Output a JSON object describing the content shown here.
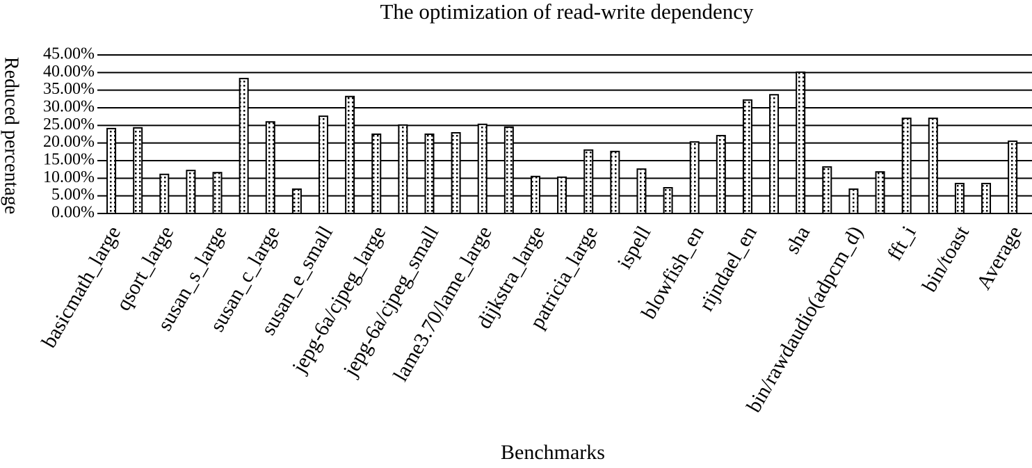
{
  "chart_data": {
    "type": "bar",
    "title": "The optimization of read-write dependency",
    "x_label": "Benchmarks",
    "y_label": "Reduced percentage",
    "categories": [
      "basicmath_large",
      null,
      "qsort_large",
      null,
      "susan_s_large",
      null,
      "susan_c_large",
      null,
      "susan_e_small",
      null,
      "jepg-6a/cjpeg_large",
      null,
      "jepg-6a/cjpeg_small",
      null,
      "lame3.70/lame_large",
      null,
      "dijkstra_large",
      null,
      "patricia_large",
      null,
      "ispell",
      null,
      "blowfish_en",
      null,
      "rijndael_en",
      null,
      "sha",
      null,
      "bin/rawdaudio(adpcm_d)",
      null,
      "fft_i",
      null,
      "bin/toast",
      null,
      "Average"
    ],
    "values": [
      24.1,
      24.3,
      11.1,
      12.2,
      11.6,
      38.3,
      26.0,
      6.9,
      27.6,
      33.2,
      22.5,
      25.1,
      22.5,
      22.9,
      25.3,
      24.5,
      10.5,
      10.3,
      18.0,
      17.6,
      12.6,
      7.3,
      20.3,
      22.1,
      32.2,
      33.7,
      40.1,
      13.2,
      6.9,
      11.8,
      27.0,
      27.0,
      8.5,
      8.5,
      20.5
    ],
    "color": "#000000",
    "ylim": [
      0,
      45
    ],
    "yticks": [
      {
        "value": 0,
        "label": "0.00%"
      },
      {
        "value": 5,
        "label": "5.00%"
      },
      {
        "value": 10,
        "label": "10.00%"
      },
      {
        "value": 15,
        "label": "15.00%"
      },
      {
        "value": 20,
        "label": "20.00%"
      },
      {
        "value": 25,
        "label": "25.00%"
      },
      {
        "value": 30,
        "label": "30.00%"
      },
      {
        "value": 35,
        "label": "35.00%"
      },
      {
        "value": 40,
        "label": "40.00%"
      },
      {
        "value": 45,
        "label": "45.00%"
      }
    ],
    "grid": true
  }
}
